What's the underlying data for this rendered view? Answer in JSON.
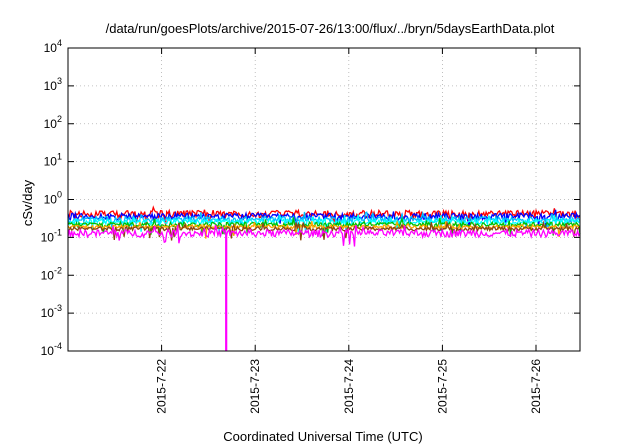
{
  "chart_data": {
    "type": "line",
    "title": "/data/run/goesPlots/archive/2015-07-26/13:00/flux/../bryn/5daysEarthData.plot",
    "xlabel": "Coordinated Universal Time (UTC)",
    "ylabel": "cSv/day",
    "yscale": "log",
    "ylim": [
      0.0001,
      10000
    ],
    "xlim": [
      0.0,
      5.47
    ],
    "ytick_exponents": [
      -4,
      -3,
      -2,
      -1,
      0,
      1,
      2,
      3,
      4
    ],
    "ytick_base": "10",
    "x_ticks": [
      {
        "x": 1.0,
        "label": "2015-7-22"
      },
      {
        "x": 2.0,
        "label": "2015-7-23"
      },
      {
        "x": 3.0,
        "label": "2015-7-24"
      },
      {
        "x": 4.0,
        "label": "2015-7-25"
      },
      {
        "x": 5.0,
        "label": "2015-7-26"
      }
    ],
    "grid": true,
    "series": [
      {
        "color": "#ff0000",
        "base": 0.42,
        "jitter": 0.22
      },
      {
        "color": "#0000ff",
        "base": 0.36,
        "jitter": 0.2
      },
      {
        "color": "#00bfff",
        "base": 0.3,
        "jitter": 0.18
      },
      {
        "color": "#00ffff",
        "base": 0.26,
        "jitter": 0.16
      },
      {
        "color": "#00c000",
        "base": 0.22,
        "jitter": 0.14
      },
      {
        "color": "#ffa500",
        "base": 0.19,
        "jitter": 0.12
      },
      {
        "color": "#8b4513",
        "base": 0.17,
        "jitter": 0.12
      },
      {
        "color": "#ff00ff",
        "base": 0.13,
        "jitter": 0.22
      }
    ],
    "spike": {
      "x": 1.69,
      "ymin": 0.0001,
      "ymax": 0.13,
      "color": "#ff00ff"
    }
  }
}
